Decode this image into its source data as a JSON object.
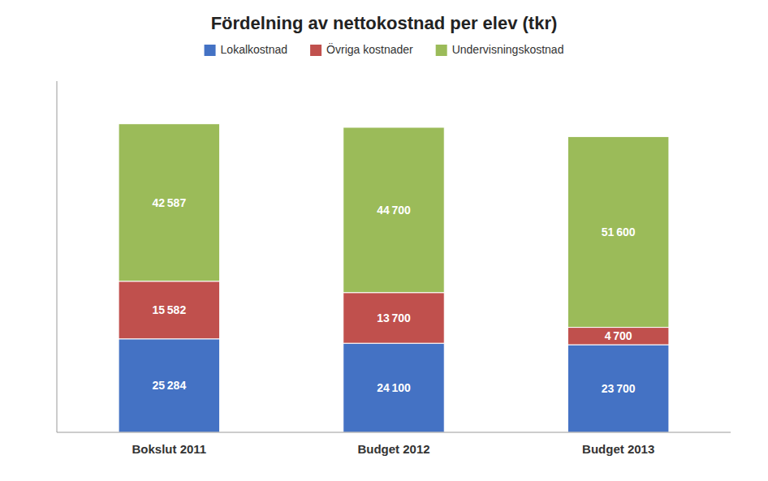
{
  "chart_data": {
    "type": "bar",
    "title": "Fördelning av nettokostnad per elev (tkr)",
    "categories": [
      "Bokslut 2011",
      "Budget 2012",
      "Budget 2013"
    ],
    "series": [
      {
        "name": "Lokalkostnad",
        "color": "#4472C4",
        "values": [
          25284,
          24100,
          23700
        ],
        "value_labels": [
          "25 284",
          "24 100",
          "23 700"
        ]
      },
      {
        "name": "Övriga kostnader",
        "color": "#C0504D",
        "values": [
          15582,
          13700,
          4700
        ],
        "value_labels": [
          "15 582",
          "13 700",
          "4 700"
        ]
      },
      {
        "name": "Undervisningskostnad",
        "color": "#9BBB59",
        "values": [
          42587,
          44700,
          51600
        ],
        "value_labels": [
          "42 587",
          "44 700",
          "51 600"
        ]
      }
    ],
    "stacked": true,
    "ylim": [
      0,
      95000
    ],
    "yticks": [],
    "tick_labels": "x",
    "data_labels": true,
    "grid": false,
    "legend": "top"
  }
}
